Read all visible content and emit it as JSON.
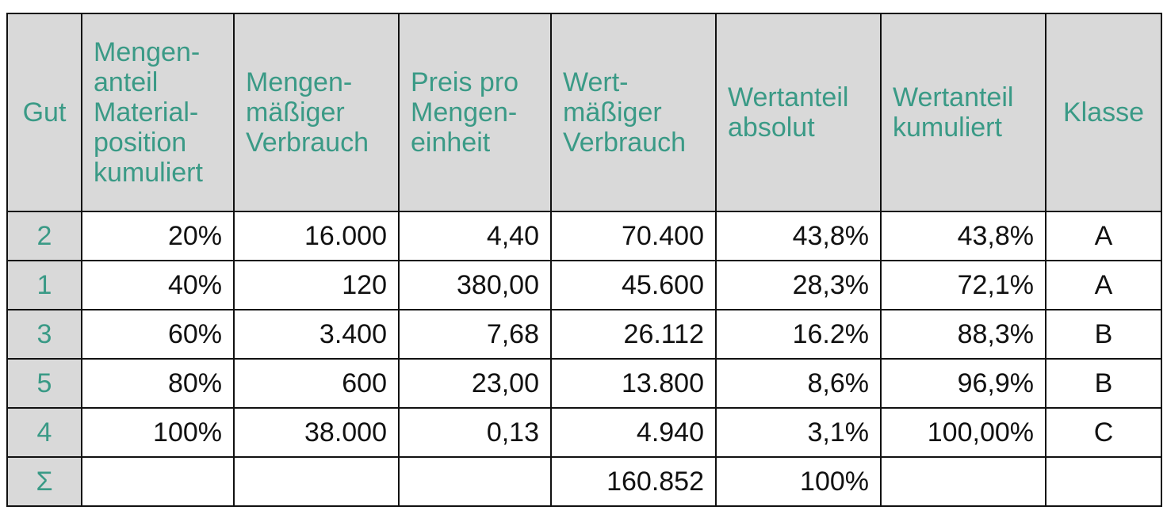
{
  "table": {
    "headers": [
      {
        "lines": [
          "Gut"
        ]
      },
      {
        "lines": [
          "Mengen-",
          "anteil",
          "Material-",
          "position",
          "kumuliert"
        ]
      },
      {
        "lines": [
          "Mengen-",
          "mäßiger",
          "Verbrauch"
        ]
      },
      {
        "lines": [
          "Preis pro",
          "Mengen-",
          "einheit"
        ]
      },
      {
        "lines": [
          "Wert-",
          "mäßiger",
          "Verbrauch"
        ]
      },
      {
        "lines": [
          "Wertanteil",
          "absolut"
        ]
      },
      {
        "lines": [
          "Wertanteil",
          "kumuliert"
        ]
      },
      {
        "lines": [
          "Klasse"
        ]
      }
    ],
    "rows": [
      [
        "2",
        "20%",
        "16.000",
        "4,40",
        "70.400",
        "43,8%",
        "43,8%",
        "A"
      ],
      [
        "1",
        "40%",
        "120",
        "380,00",
        "45.600",
        "28,3%",
        "72,1%",
        "A"
      ],
      [
        "3",
        "60%",
        "3.400",
        "7,68",
        "26.112",
        "16.2%",
        "88,3%",
        "B"
      ],
      [
        "5",
        "80%",
        "600",
        "23,00",
        "13.800",
        "8,6%",
        "96,9%",
        "B"
      ],
      [
        "4",
        "100%",
        "38.000",
        "0,13",
        "4.940",
        "3,1%",
        "100,00%",
        "C"
      ],
      [
        "Σ",
        "",
        "",
        "",
        "160.852",
        "100%",
        "",
        ""
      ]
    ]
  },
  "colors": {
    "header_text": "#3a9a86",
    "header_bg": "#d9d9d9",
    "border": "#111111",
    "body_text": "#111111"
  }
}
